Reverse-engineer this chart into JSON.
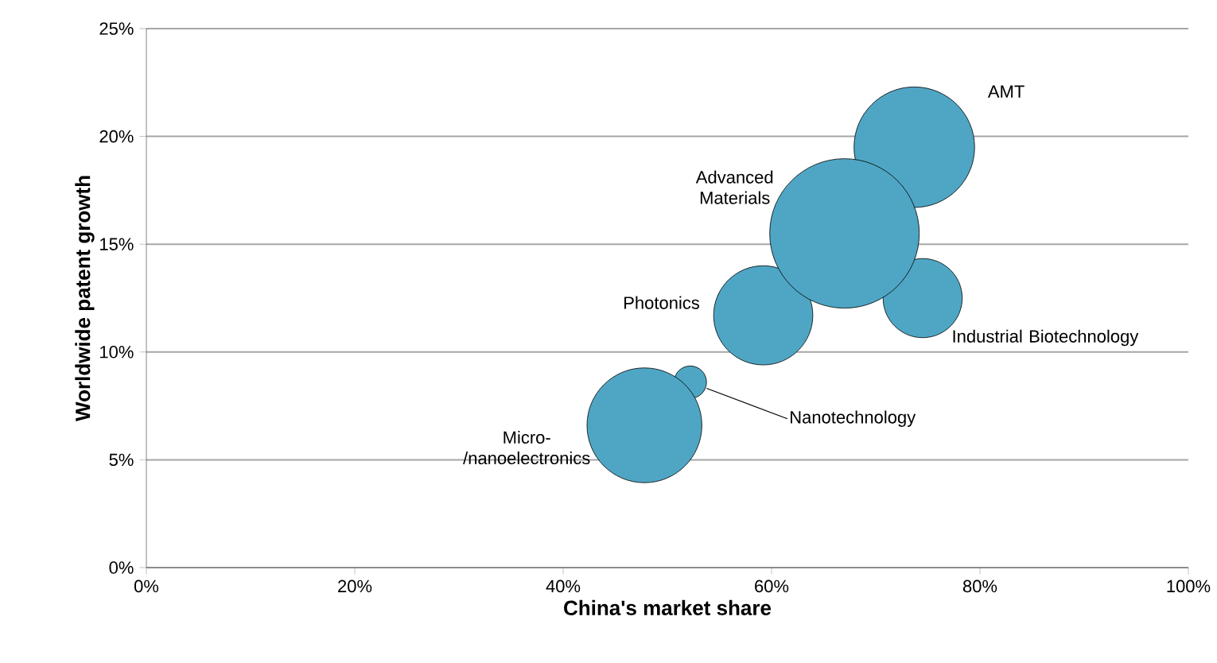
{
  "chart_data": {
    "type": "bubble",
    "xlabel": "China's market share",
    "ylabel": "Worldwide patent growth",
    "xlim": [
      0,
      100
    ],
    "ylim": [
      0,
      25
    ],
    "xticks": [
      {
        "value": 0,
        "label": "0%"
      },
      {
        "value": 20,
        "label": "20%"
      },
      {
        "value": 40,
        "label": "40%"
      },
      {
        "value": 60,
        "label": "60%"
      },
      {
        "value": 80,
        "label": "80%"
      },
      {
        "value": 100,
        "label": "100%"
      }
    ],
    "yticks": [
      {
        "value": 0,
        "label": "0%"
      },
      {
        "value": 5,
        "label": "5%"
      },
      {
        "value": 10,
        "label": "10%"
      },
      {
        "value": 15,
        "label": "15%"
      },
      {
        "value": 20,
        "label": "20%"
      },
      {
        "value": 25,
        "label": "25%"
      }
    ],
    "grid": "y",
    "series": [
      {
        "name": "Nanotechnology",
        "color": "#4fa6c4",
        "x": [
          52.2
        ],
        "values": [
          8.6
        ],
        "sizes": [
          0.047
        ]
      },
      {
        "name": "Micro-/nanoelectronics",
        "color": "#4fa6c4",
        "x": [
          47.8
        ],
        "values": [
          6.6
        ],
        "sizes": [
          0.59
        ]
      },
      {
        "name": "Photonics",
        "color": "#4fa6c4",
        "x": [
          59.2
        ],
        "values": [
          11.7
        ],
        "sizes": [
          0.44
        ]
      },
      {
        "name": "Industrial Biotechnology",
        "color": "#4fa6c4",
        "x": [
          74.5
        ],
        "values": [
          12.5
        ],
        "sizes": [
          0.28
        ]
      },
      {
        "name": "AMT",
        "color": "#4fa6c4",
        "x": [
          73.7
        ],
        "values": [
          19.5
        ],
        "sizes": [
          0.65
        ]
      },
      {
        "name": "Advanced Materials",
        "color": "#4fa6c4",
        "x": [
          67
        ],
        "values": [
          15.5
        ],
        "sizes": [
          1
        ]
      }
    ]
  }
}
